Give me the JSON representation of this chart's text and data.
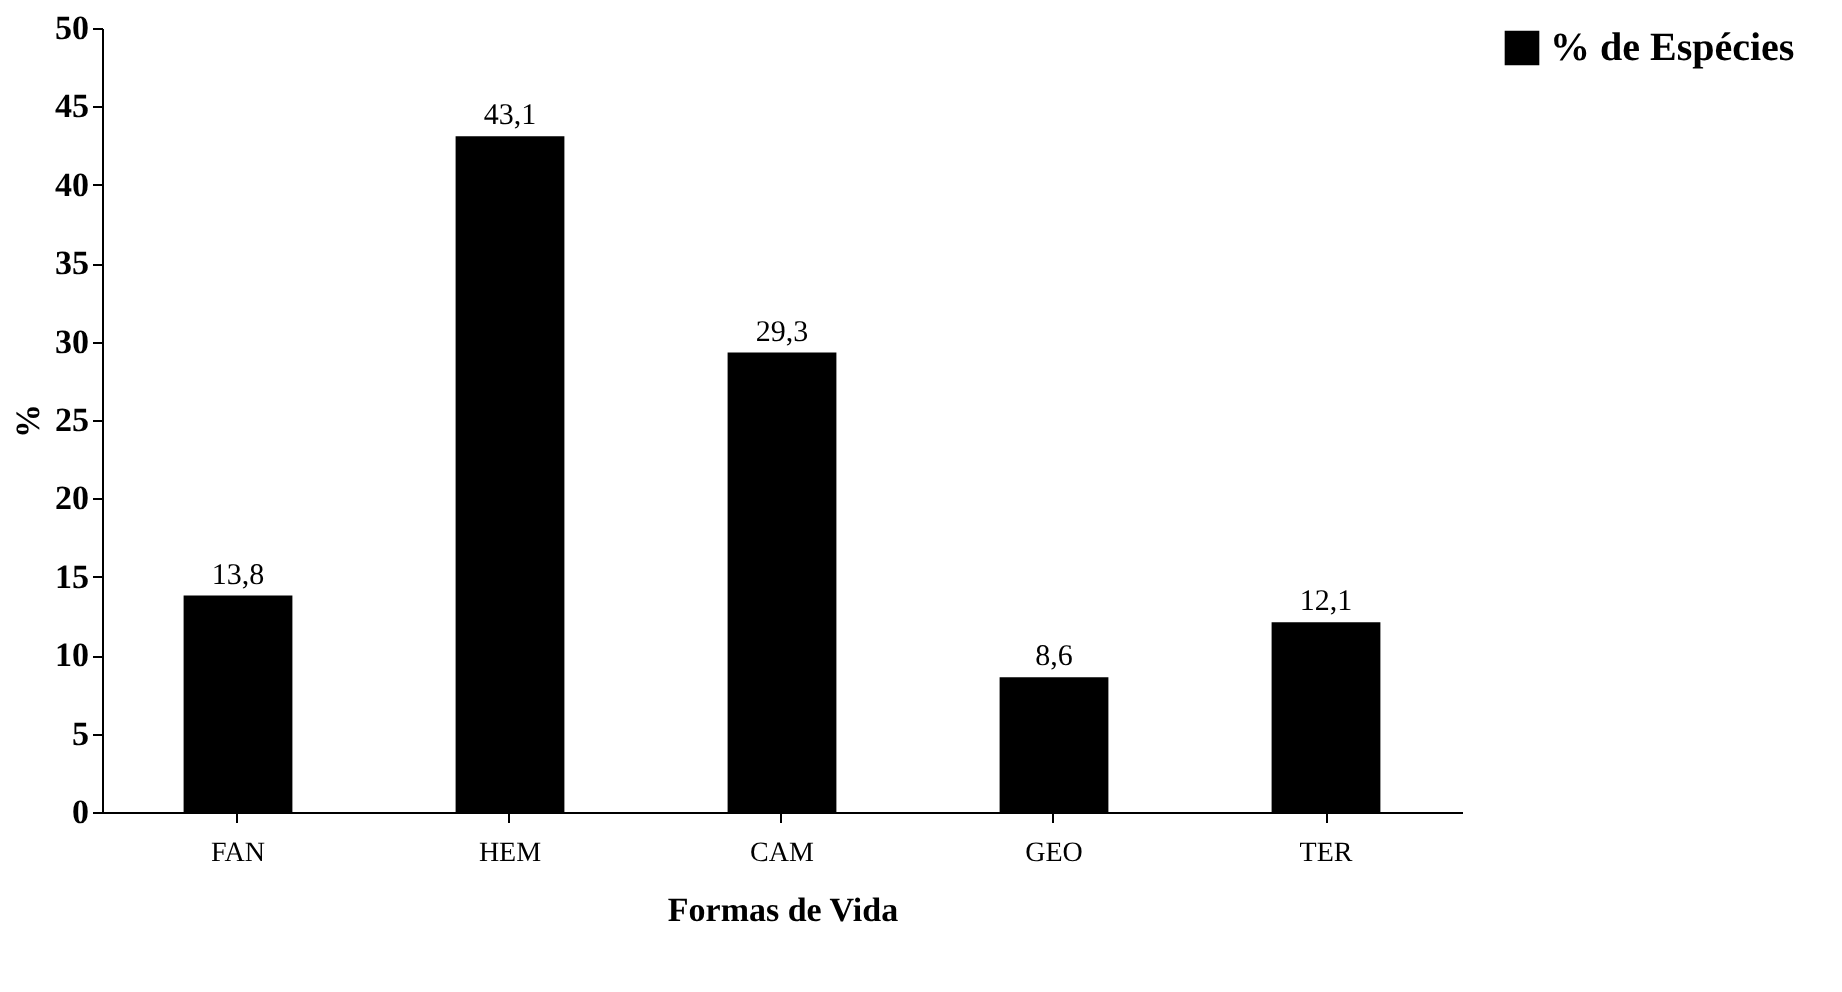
{
  "chart_data": {
    "type": "bar",
    "xlabel": "Formas de Vida",
    "ylabel": "%",
    "categories": [
      "FAN",
      "HEM",
      "CAM",
      "GEO",
      "TER"
    ],
    "series": [
      {
        "name": "% de Espécies",
        "color": "#000000",
        "values": [
          13.8,
          43.1,
          29.3,
          8.6,
          12.1
        ],
        "value_labels": [
          "13,8",
          "43,1",
          "29,3",
          "8,6",
          "12,1"
        ]
      }
    ],
    "ylim": [
      0,
      50
    ],
    "yticks": [
      0,
      5,
      10,
      15,
      20,
      25,
      30,
      35,
      40,
      45,
      50
    ],
    "grid": false,
    "legend": "right"
  }
}
